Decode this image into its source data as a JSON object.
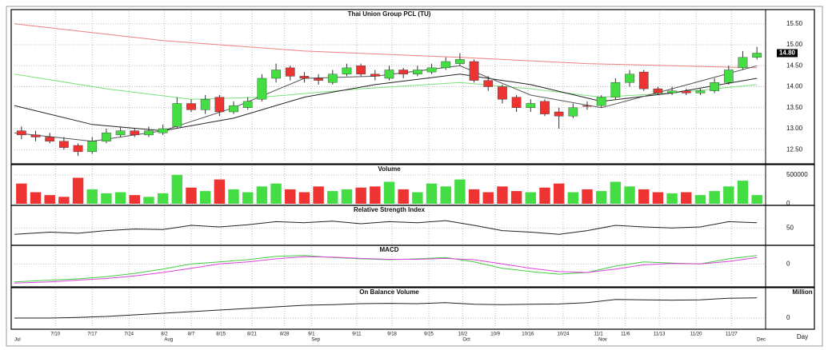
{
  "chart_data": [
    {
      "type": "candlestick",
      "title": "Thai Union Group PCL (TU)",
      "up_color": "#44dd44",
      "down_color": "#ee3333",
      "open": [
        12.95,
        12.85,
        12.8,
        12.7,
        12.6,
        12.45,
        12.7,
        12.85,
        12.95,
        12.85,
        12.9,
        13.05,
        13.6,
        13.45,
        13.75,
        13.4,
        13.5,
        13.7,
        14.2,
        14.45,
        14.25,
        14.2,
        14.1,
        14.3,
        14.5,
        14.3,
        14.2,
        14.4,
        14.3,
        14.35,
        14.45,
        14.55,
        14.6,
        14.15,
        14.0,
        13.75,
        13.5,
        13.65,
        13.4,
        13.3,
        13.55,
        13.55,
        13.75,
        14.1,
        14.35,
        13.95,
        13.85,
        13.9,
        13.85,
        13.9,
        14.1,
        14.45,
        14.7
      ],
      "high": [
        13.05,
        12.95,
        12.9,
        12.8,
        12.65,
        12.8,
        13.0,
        13.05,
        13.0,
        13.05,
        13.1,
        13.75,
        13.7,
        13.8,
        13.8,
        13.65,
        13.75,
        14.3,
        14.55,
        14.5,
        14.35,
        14.3,
        14.4,
        14.55,
        14.55,
        14.4,
        14.5,
        14.45,
        14.5,
        14.55,
        14.7,
        14.8,
        14.65,
        14.25,
        14.05,
        13.8,
        13.7,
        13.7,
        13.5,
        13.6,
        13.65,
        13.8,
        14.2,
        14.4,
        14.4,
        14.0,
        14.0,
        13.95,
        13.95,
        14.2,
        14.5,
        14.85,
        14.95
      ],
      "low": [
        12.75,
        12.7,
        12.65,
        12.5,
        12.35,
        12.4,
        12.65,
        12.8,
        12.8,
        12.8,
        12.85,
        13.0,
        13.4,
        13.35,
        13.3,
        13.35,
        13.45,
        13.65,
        14.1,
        14.15,
        14.1,
        14.05,
        14.05,
        14.25,
        14.25,
        14.15,
        14.15,
        14.2,
        14.25,
        14.3,
        14.4,
        14.5,
        14.1,
        13.9,
        13.6,
        13.4,
        13.4,
        13.3,
        13.0,
        13.25,
        13.45,
        13.5,
        13.7,
        14.0,
        13.9,
        13.8,
        13.8,
        13.8,
        13.8,
        13.85,
        14.05,
        14.4,
        14.65
      ],
      "close": [
        12.85,
        12.8,
        12.7,
        12.55,
        12.45,
        12.7,
        12.9,
        12.95,
        12.85,
        12.95,
        13.0,
        13.6,
        13.45,
        13.7,
        13.4,
        13.55,
        13.65,
        14.2,
        14.4,
        14.25,
        14.2,
        14.15,
        14.3,
        14.45,
        14.3,
        14.25,
        14.4,
        14.3,
        14.4,
        14.45,
        14.6,
        14.65,
        14.15,
        14.0,
        13.7,
        13.5,
        13.6,
        13.35,
        13.3,
        13.5,
        13.55,
        13.75,
        14.1,
        14.3,
        13.95,
        13.85,
        13.9,
        13.85,
        13.9,
        14.1,
        14.4,
        14.7,
        14.8
      ],
      "series": [
        {
          "color": "#f08080",
          "x": [
            -0.5,
            10,
            20,
            31,
            40,
            52
          ],
          "values": [
            15.5,
            15.1,
            14.85,
            14.7,
            14.55,
            14.45
          ]
        },
        {
          "color": "#7ee07e",
          "x": [
            -0.5,
            6,
            12,
            17,
            24,
            31,
            36,
            41,
            46,
            52
          ],
          "values": [
            14.3,
            13.95,
            13.7,
            13.75,
            13.95,
            14.1,
            13.95,
            13.75,
            13.85,
            14.05
          ]
        },
        {
          "color": "#222222",
          "x": [
            -0.5,
            5,
            10,
            15,
            20,
            25,
            31,
            36,
            41,
            46,
            52
          ],
          "values": [
            13.55,
            13.1,
            12.95,
            13.25,
            13.75,
            14.05,
            14.3,
            14.05,
            13.65,
            13.85,
            14.2
          ]
        },
        {
          "color": "#555555",
          "x": [
            -0.5,
            5,
            10,
            15,
            20,
            25,
            31,
            36,
            41,
            46,
            52
          ],
          "values": [
            12.9,
            12.7,
            12.95,
            13.5,
            14.2,
            14.25,
            14.5,
            13.8,
            13.5,
            13.95,
            14.5
          ]
        }
      ],
      "last_price": {
        "value": 14.8,
        "label": "14.80"
      },
      "xlim": [
        -0.5,
        52.5
      ],
      "ylim": [
        12.2,
        15.8
      ],
      "yticks": [
        {
          "value": 12.5,
          "label": "12.50"
        },
        {
          "value": 13,
          "label": "13.00"
        },
        {
          "value": 13.5,
          "label": "13.50"
        },
        {
          "value": 14,
          "label": "14.00"
        },
        {
          "value": 14.5,
          "label": "14.50"
        },
        {
          "value": 15,
          "label": "15.00"
        },
        {
          "value": 15.5,
          "label": "15.50"
        }
      ],
      "grid": true
    },
    {
      "type": "volume",
      "title": "Volume",
      "values": [
        350000,
        200000,
        150000,
        120000,
        450000,
        250000,
        180000,
        200000,
        150000,
        120000,
        180000,
        500000,
        280000,
        220000,
        420000,
        250000,
        200000,
        300000,
        350000,
        250000,
        200000,
        300000,
        220000,
        250000,
        280000,
        300000,
        380000,
        250000,
        200000,
        350000,
        300000,
        420000,
        250000,
        200000,
        300000,
        220000,
        200000,
        280000,
        350000,
        200000,
        250000,
        220000,
        380000,
        300000,
        250000,
        200000,
        180000,
        200000,
        150000,
        220000,
        300000,
        400000,
        150000
      ],
      "xlim": [
        -0.5,
        52.5
      ],
      "ylim": [
        0,
        650000
      ],
      "yticks": [
        0,
        500000
      ],
      "grid": true
    },
    {
      "type": "line",
      "title": "Relative Strength Index",
      "x": [
        -0.5,
        2,
        4,
        6,
        8,
        10,
        12,
        14,
        16,
        18,
        20,
        22,
        24,
        26,
        28,
        30,
        32,
        34,
        36,
        38,
        40,
        42,
        44,
        46,
        48,
        50,
        52
      ],
      "series": [
        {
          "color": "#222222",
          "values": [
            38,
            42,
            40,
            45,
            48,
            47,
            55,
            52,
            56,
            62,
            60,
            63,
            58,
            62,
            60,
            64,
            55,
            45,
            42,
            38,
            45,
            55,
            52,
            50,
            52,
            62,
            60
          ]
        }
      ],
      "xlim": [
        -0.5,
        52.5
      ],
      "ylim": [
        20,
        90
      ],
      "yticks": [
        50
      ],
      "grid": true
    },
    {
      "type": "line",
      "title": "MACD",
      "x": [
        -0.5,
        2,
        4,
        6,
        8,
        10,
        12,
        14,
        16,
        18,
        20,
        22,
        24,
        26,
        28,
        30,
        32,
        34,
        36,
        38,
        40,
        42,
        44,
        46,
        48,
        50,
        52
      ],
      "series": [
        {
          "color": "#44cc44",
          "values": [
            -0.42,
            -0.38,
            -0.35,
            -0.3,
            -0.22,
            -0.12,
            0.0,
            0.05,
            0.1,
            0.18,
            0.2,
            0.15,
            0.12,
            0.1,
            0.12,
            0.15,
            0.05,
            -0.1,
            -0.18,
            -0.24,
            -0.2,
            -0.05,
            0.05,
            0.02,
            0.0,
            0.12,
            0.2
          ]
        },
        {
          "color": "#dd44dd",
          "values": [
            -0.45,
            -0.42,
            -0.38,
            -0.34,
            -0.28,
            -0.2,
            -0.1,
            0.0,
            0.05,
            0.12,
            0.17,
            0.16,
            0.13,
            0.11,
            0.11,
            0.13,
            0.1,
            0.0,
            -0.1,
            -0.18,
            -0.2,
            -0.12,
            -0.02,
            0.01,
            0.0,
            0.06,
            0.15
          ]
        }
      ],
      "xlim": [
        -0.5,
        52.5
      ],
      "ylim": [
        -0.5,
        0.4
      ],
      "yticks": [
        0
      ],
      "grid": true
    },
    {
      "type": "line",
      "title": "On Balance Volume",
      "y_label": "Million",
      "x_label": "Day",
      "x": [
        -0.5,
        2,
        4,
        6,
        8,
        10,
        12,
        14,
        16,
        18,
        20,
        22,
        24,
        26,
        28,
        30,
        32,
        34,
        36,
        38,
        40,
        42,
        44,
        46,
        48,
        50,
        52
      ],
      "series": [
        {
          "color": "#222222",
          "values": [
            0,
            0,
            0.2,
            0.5,
            1,
            1.5,
            2,
            2.5,
            3,
            3.5,
            4,
            4.2,
            4.5,
            4.6,
            4.5,
            4.8,
            4.3,
            4.2,
            4.3,
            4.4,
            4.8,
            5.8,
            5.7,
            5.6,
            5.7,
            6.2,
            6.3
          ]
        }
      ],
      "xlim": [
        -0.5,
        52.5
      ],
      "ylim": [
        -3,
        9
      ],
      "yticks": [
        0
      ],
      "xticks": [
        {
          "value": 2.4,
          "label": "7/10"
        },
        {
          "value": 5,
          "label": "7/17"
        },
        {
          "value": 7.6,
          "label": "7/24"
        },
        {
          "value": 10.1,
          "label": "8/2"
        },
        {
          "value": 12,
          "label": "8/7"
        },
        {
          "value": 14.1,
          "label": "8/15"
        },
        {
          "value": 16.3,
          "label": "8/21"
        },
        {
          "value": 18.6,
          "label": "8/28"
        },
        {
          "value": 20.5,
          "label": "9/1"
        },
        {
          "value": 23.7,
          "label": "9/11"
        },
        {
          "value": 26.2,
          "label": "9/18"
        },
        {
          "value": 28.8,
          "label": "9/25"
        },
        {
          "value": 31.2,
          "label": "10/2"
        },
        {
          "value": 33.5,
          "label": "10/9"
        },
        {
          "value": 35.8,
          "label": "10/16"
        },
        {
          "value": 38.3,
          "label": "10/24"
        },
        {
          "value": 40.8,
          "label": "11/1"
        },
        {
          "value": 42.7,
          "label": "11/6"
        },
        {
          "value": 45.1,
          "label": "11/13"
        },
        {
          "value": 47.7,
          "label": "11/20"
        },
        {
          "value": 50.2,
          "label": "11/27"
        }
      ],
      "month_ticks": [
        {
          "value": -0.5,
          "label": "Jul"
        },
        {
          "value": 10.1,
          "label": "Aug"
        },
        {
          "value": 20.5,
          "label": "Sep"
        },
        {
          "value": 31.2,
          "label": "Oct"
        },
        {
          "value": 40.8,
          "label": "Nov"
        },
        {
          "value": 52,
          "label": "Dec"
        }
      ],
      "grid": true
    }
  ]
}
